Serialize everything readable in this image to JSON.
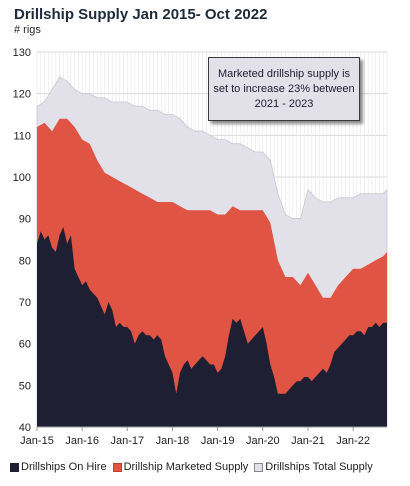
{
  "chart_data": {
    "type": "area",
    "title": "Drillship Supply Jan 2015- Oct 2022",
    "subtitle": "# rigs",
    "ylim": [
      40,
      130
    ],
    "yticks": [
      40,
      50,
      60,
      70,
      80,
      90,
      100,
      110,
      120,
      130
    ],
    "x_start": "2015-01",
    "x_end": "2022-10",
    "xtick_labels": [
      "Jan-15",
      "Jan-16",
      "Jan-17",
      "Jan-18",
      "Jan-19",
      "Jan-20",
      "Jan-21",
      "Jan-22"
    ],
    "grid": true,
    "legend_position": "bottom",
    "annotation": "Marketed drillship supply is set to increase 23% between 2021 - 2023",
    "colors": {
      "total": "#e2e1ea",
      "marketed": "#e05444",
      "hire": "#1f1f33"
    },
    "series": [
      {
        "name": "Drillships Total Supply",
        "color": "#e2e1ea",
        "points": [
          [
            "2015-01",
            117
          ],
          [
            "2015-03",
            118
          ],
          [
            "2015-05",
            121
          ],
          [
            "2015-07",
            124
          ],
          [
            "2015-09",
            123
          ],
          [
            "2015-11",
            121
          ],
          [
            "2016-01",
            120
          ],
          [
            "2016-03",
            120
          ],
          [
            "2016-05",
            119
          ],
          [
            "2016-07",
            119
          ],
          [
            "2016-09",
            118
          ],
          [
            "2016-11",
            118
          ],
          [
            "2017-01",
            118
          ],
          [
            "2017-03",
            117
          ],
          [
            "2017-05",
            117
          ],
          [
            "2017-07",
            116
          ],
          [
            "2017-09",
            116
          ],
          [
            "2017-11",
            115
          ],
          [
            "2018-01",
            115
          ],
          [
            "2018-03",
            114
          ],
          [
            "2018-05",
            112
          ],
          [
            "2018-07",
            111
          ],
          [
            "2018-09",
            111
          ],
          [
            "2018-11",
            110
          ],
          [
            "2019-01",
            109
          ],
          [
            "2019-03",
            109
          ],
          [
            "2019-05",
            108
          ],
          [
            "2019-07",
            108
          ],
          [
            "2019-09",
            107
          ],
          [
            "2019-11",
            106
          ],
          [
            "2020-01",
            106
          ],
          [
            "2020-03",
            104
          ],
          [
            "2020-05",
            96
          ],
          [
            "2020-07",
            91
          ],
          [
            "2020-09",
            90
          ],
          [
            "2020-11",
            90
          ],
          [
            "2021-01",
            97
          ],
          [
            "2021-03",
            95
          ],
          [
            "2021-05",
            94
          ],
          [
            "2021-07",
            94
          ],
          [
            "2021-09",
            95
          ],
          [
            "2021-11",
            95
          ],
          [
            "2022-01",
            95
          ],
          [
            "2022-03",
            96
          ],
          [
            "2022-05",
            96
          ],
          [
            "2022-07",
            96
          ],
          [
            "2022-09",
            96
          ],
          [
            "2022-10",
            97
          ]
        ]
      },
      {
        "name": "Drillship Marketed Supply",
        "color": "#e05444",
        "points": [
          [
            "2015-01",
            112
          ],
          [
            "2015-03",
            113
          ],
          [
            "2015-05",
            111
          ],
          [
            "2015-07",
            114
          ],
          [
            "2015-09",
            114
          ],
          [
            "2015-11",
            112
          ],
          [
            "2016-01",
            109
          ],
          [
            "2016-03",
            108
          ],
          [
            "2016-05",
            104
          ],
          [
            "2016-07",
            101
          ],
          [
            "2016-09",
            100
          ],
          [
            "2016-11",
            99
          ],
          [
            "2017-01",
            98
          ],
          [
            "2017-03",
            97
          ],
          [
            "2017-05",
            96
          ],
          [
            "2017-07",
            95
          ],
          [
            "2017-09",
            94
          ],
          [
            "2017-11",
            94
          ],
          [
            "2018-01",
            94
          ],
          [
            "2018-03",
            93
          ],
          [
            "2018-05",
            92
          ],
          [
            "2018-07",
            92
          ],
          [
            "2018-09",
            92
          ],
          [
            "2018-11",
            92
          ],
          [
            "2019-01",
            91
          ],
          [
            "2019-03",
            91
          ],
          [
            "2019-05",
            93
          ],
          [
            "2019-07",
            92
          ],
          [
            "2019-09",
            92
          ],
          [
            "2019-11",
            92
          ],
          [
            "2020-01",
            92
          ],
          [
            "2020-03",
            89
          ],
          [
            "2020-05",
            80
          ],
          [
            "2020-07",
            76
          ],
          [
            "2020-09",
            76
          ],
          [
            "2020-11",
            74
          ],
          [
            "2021-01",
            77
          ],
          [
            "2021-03",
            74
          ],
          [
            "2021-05",
            71
          ],
          [
            "2021-07",
            71
          ],
          [
            "2021-09",
            74
          ],
          [
            "2021-11",
            76
          ],
          [
            "2022-01",
            78
          ],
          [
            "2022-03",
            78
          ],
          [
            "2022-05",
            79
          ],
          [
            "2022-07",
            80
          ],
          [
            "2022-09",
            81
          ],
          [
            "2022-10",
            82
          ]
        ]
      },
      {
        "name": "Drillships On Hire",
        "color": "#1f1f33",
        "points": [
          [
            "2015-01",
            84
          ],
          [
            "2015-02",
            87
          ],
          [
            "2015-03",
            85
          ],
          [
            "2015-04",
            86
          ],
          [
            "2015-05",
            83
          ],
          [
            "2015-06",
            82
          ],
          [
            "2015-07",
            86
          ],
          [
            "2015-08",
            88
          ],
          [
            "2015-09",
            84
          ],
          [
            "2015-10",
            86
          ],
          [
            "2015-11",
            78
          ],
          [
            "2015-12",
            76
          ],
          [
            "2016-01",
            74
          ],
          [
            "2016-02",
            75
          ],
          [
            "2016-03",
            73
          ],
          [
            "2016-04",
            72
          ],
          [
            "2016-05",
            71
          ],
          [
            "2016-06",
            69
          ],
          [
            "2016-07",
            67
          ],
          [
            "2016-08",
            70
          ],
          [
            "2016-09",
            68
          ],
          [
            "2016-10",
            64
          ],
          [
            "2016-11",
            65
          ],
          [
            "2016-12",
            64
          ],
          [
            "2017-01",
            64
          ],
          [
            "2017-02",
            63
          ],
          [
            "2017-03",
            60
          ],
          [
            "2017-04",
            62
          ],
          [
            "2017-05",
            63
          ],
          [
            "2017-06",
            62
          ],
          [
            "2017-07",
            62
          ],
          [
            "2017-08",
            61
          ],
          [
            "2017-09",
            62
          ],
          [
            "2017-10",
            61
          ],
          [
            "2017-11",
            57
          ],
          [
            "2017-12",
            55
          ],
          [
            "2018-01",
            53
          ],
          [
            "2018-02",
            48
          ],
          [
            "2018-03",
            53
          ],
          [
            "2018-04",
            55
          ],
          [
            "2018-05",
            56
          ],
          [
            "2018-06",
            54
          ],
          [
            "2018-07",
            55
          ],
          [
            "2018-08",
            56
          ],
          [
            "2018-09",
            57
          ],
          [
            "2018-10",
            56
          ],
          [
            "2018-11",
            55
          ],
          [
            "2018-12",
            55
          ],
          [
            "2019-01",
            53
          ],
          [
            "2019-02",
            54
          ],
          [
            "2019-03",
            57
          ],
          [
            "2019-04",
            62
          ],
          [
            "2019-05",
            66
          ],
          [
            "2019-06",
            65
          ],
          [
            "2019-07",
            66
          ],
          [
            "2019-08",
            63
          ],
          [
            "2019-09",
            60
          ],
          [
            "2019-10",
            61
          ],
          [
            "2019-11",
            62
          ],
          [
            "2019-12",
            63
          ],
          [
            "2020-01",
            64
          ],
          [
            "2020-02",
            60
          ],
          [
            "2020-03",
            55
          ],
          [
            "2020-04",
            52
          ],
          [
            "2020-05",
            48
          ],
          [
            "2020-06",
            48
          ],
          [
            "2020-07",
            48
          ],
          [
            "2020-08",
            49
          ],
          [
            "2020-09",
            50
          ],
          [
            "2020-10",
            51
          ],
          [
            "2020-11",
            51
          ],
          [
            "2020-12",
            52
          ],
          [
            "2021-01",
            52
          ],
          [
            "2021-02",
            51
          ],
          [
            "2021-03",
            52
          ],
          [
            "2021-04",
            53
          ],
          [
            "2021-05",
            54
          ],
          [
            "2021-06",
            53
          ],
          [
            "2021-07",
            55
          ],
          [
            "2021-08",
            58
          ],
          [
            "2021-09",
            59
          ],
          [
            "2021-10",
            60
          ],
          [
            "2021-11",
            61
          ],
          [
            "2021-12",
            62
          ],
          [
            "2022-01",
            62
          ],
          [
            "2022-02",
            63
          ],
          [
            "2022-03",
            63
          ],
          [
            "2022-04",
            62
          ],
          [
            "2022-05",
            64
          ],
          [
            "2022-06",
            64
          ],
          [
            "2022-07",
            65
          ],
          [
            "2022-08",
            64
          ],
          [
            "2022-09",
            65
          ],
          [
            "2022-10",
            65
          ]
        ]
      }
    ]
  },
  "legend": {
    "hire_label": "Drillships On Hire",
    "marketed_label": "Drillship Marketed Supply",
    "total_label": "Drillships Total Supply"
  }
}
